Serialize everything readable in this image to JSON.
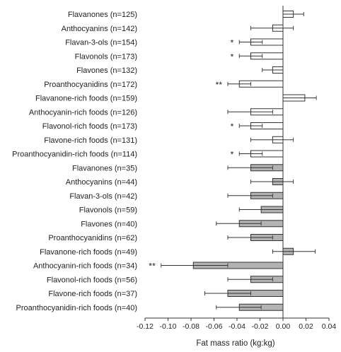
{
  "chart_data": {
    "type": "bar",
    "orientation": "horizontal",
    "title": "",
    "xlabel": "Fat mass ratio (kg:kg)",
    "ylabel": "",
    "xlim": [
      -0.12,
      0.04
    ],
    "xticks": [
      "-0.12",
      "-0.10",
      "-0.08",
      "-0.06",
      "-0.04",
      "-0.02",
      "0.00",
      "0.02",
      "0.04"
    ],
    "grid": false,
    "colors": {
      "open_bar": "#ffffff",
      "shaded_bar": "#b3b3b3",
      "stroke": "#333333"
    },
    "rows": [
      {
        "label": "Flavanones (n=125)",
        "value": 0.009,
        "ci": [
          0.0,
          0.018
        ],
        "sig": "",
        "shade": "open"
      },
      {
        "label": "Anthocyanins (n=142)",
        "value": -0.009,
        "ci": [
          -0.028,
          0.009
        ],
        "sig": "",
        "shade": "open"
      },
      {
        "label": "Flavan-3-ols (n=154)",
        "value": -0.028,
        "ci": [
          -0.038,
          -0.018
        ],
        "sig": "*",
        "shade": "open"
      },
      {
        "label": "Flavonols (n=173)",
        "value": -0.028,
        "ci": [
          -0.038,
          -0.018
        ],
        "sig": "*",
        "shade": "open"
      },
      {
        "label": "Flavones (n=132)",
        "value": -0.009,
        "ci": [
          -0.018,
          0.0
        ],
        "sig": "",
        "shade": "open"
      },
      {
        "label": "Proanthocyanidins (n=172)",
        "value": -0.038,
        "ci": [
          -0.048,
          -0.028
        ],
        "sig": "**",
        "shade": "open"
      },
      {
        "label": "Flavanone-rich foods (n=159)",
        "value": 0.019,
        "ci": [
          0.0,
          0.029
        ],
        "sig": "",
        "shade": "open"
      },
      {
        "label": "Anthocyanin-rich foods (n=126)",
        "value": -0.028,
        "ci": [
          -0.048,
          -0.009
        ],
        "sig": "",
        "shade": "open"
      },
      {
        "label": "Flavonol-rich foods (n=173)",
        "value": -0.028,
        "ci": [
          -0.038,
          -0.018
        ],
        "sig": "*",
        "shade": "open"
      },
      {
        "label": "Flavone-rich foods (n=131)",
        "value": -0.009,
        "ci": [
          -0.028,
          0.009
        ],
        "sig": "",
        "shade": "open"
      },
      {
        "label": "Proanthocyanidin-rich foods (n=114)",
        "value": -0.028,
        "ci": [
          -0.038,
          -0.018
        ],
        "sig": "*",
        "shade": "open"
      },
      {
        "label": "Flavanones (n=35)",
        "value": -0.028,
        "ci": [
          -0.048,
          -0.009
        ],
        "sig": "",
        "shade": "shaded"
      },
      {
        "label": "Anthocyanins (n=44)",
        "value": -0.009,
        "ci": [
          -0.028,
          0.009
        ],
        "sig": "",
        "shade": "shaded"
      },
      {
        "label": "Flavan-3-ols (n=42)",
        "value": -0.028,
        "ci": [
          -0.048,
          -0.009
        ],
        "sig": "",
        "shade": "shaded"
      },
      {
        "label": "Flavonols (n=59)",
        "value": -0.019,
        "ci": [
          -0.038,
          0.0
        ],
        "sig": "",
        "shade": "shaded"
      },
      {
        "label": "Flavones (n=40)",
        "value": -0.038,
        "ci": [
          -0.058,
          -0.019
        ],
        "sig": "",
        "shade": "shaded"
      },
      {
        "label": "Proanthocyanidins (n=62)",
        "value": -0.028,
        "ci": [
          -0.048,
          -0.009
        ],
        "sig": "",
        "shade": "shaded"
      },
      {
        "label": "Flavanone-rich foods (n=49)",
        "value": 0.009,
        "ci": [
          -0.009,
          0.028
        ],
        "sig": "",
        "shade": "shaded"
      },
      {
        "label": "Anthocyanin-rich foods (n=34)",
        "value": -0.078,
        "ci": [
          -0.106,
          -0.048
        ],
        "sig": "**",
        "shade": "shaded"
      },
      {
        "label": "Flavonol-rich foods (n=56)",
        "value": -0.028,
        "ci": [
          -0.048,
          -0.009
        ],
        "sig": "",
        "shade": "shaded"
      },
      {
        "label": "Flavone-rich foods (n=37)",
        "value": -0.048,
        "ci": [
          -0.068,
          -0.028
        ],
        "sig": "",
        "shade": "shaded"
      },
      {
        "label": "Proanthocyanidin-rich foods (n=40)",
        "value": -0.038,
        "ci": [
          -0.058,
          -0.019
        ],
        "sig": "",
        "shade": "shaded"
      }
    ]
  }
}
